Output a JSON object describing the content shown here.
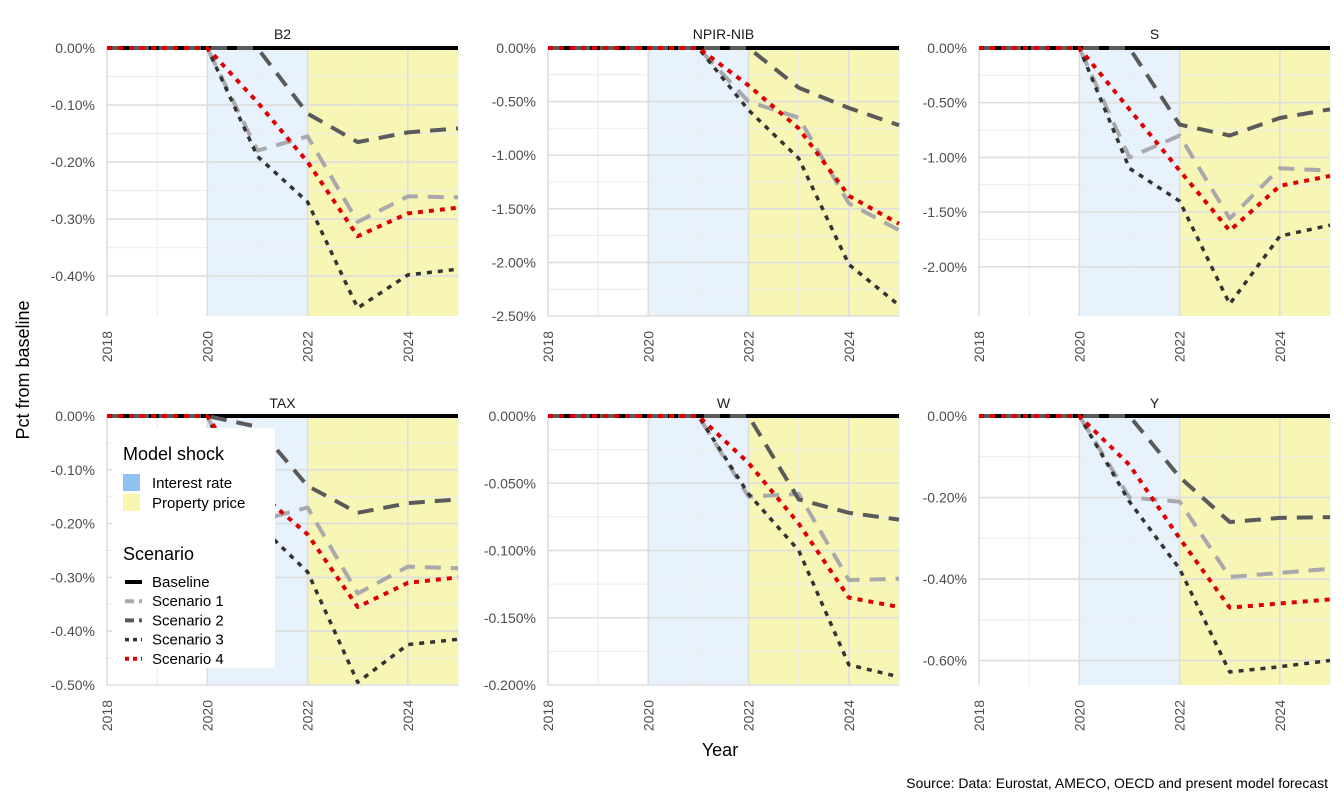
{
  "chart_data": {
    "type": "line",
    "xlabel": "Year",
    "ylabel": "Pct from baseline",
    "caption": "Source: Data: Eurostat, AMECO, OECD and present model forecast",
    "x_ticks": [
      "2018",
      "2020",
      "2022",
      "2024"
    ],
    "x": [
      2018,
      2019,
      2020,
      2021,
      2022,
      2023,
      2024,
      2025
    ],
    "xlim": [
      2018,
      2025
    ],
    "shock_periods": [
      {
        "name": "Interest rate",
        "start": 2020,
        "end": 2022,
        "color": "#90c3f5"
      },
      {
        "name": "Property price",
        "start": 2022,
        "end": 2025,
        "color": "#f6f5a8"
      }
    ],
    "legend": {
      "shock_title": "Model shock",
      "shock_items": [
        {
          "label": "Interest rate",
          "color": "#8fc1f2"
        },
        {
          "label": "Property price",
          "color": "#f8f7b0"
        }
      ],
      "scenario_title": "Scenario",
      "scenario_items": [
        {
          "label": "Baseline",
          "color": "#000000",
          "dash": "solid"
        },
        {
          "label": "Scenario 1",
          "color": "#a9a9ad",
          "dash": "longdash"
        },
        {
          "label": "Scenario 2",
          "color": "#5a5a5a",
          "dash": "longdash"
        },
        {
          "label": "Scenario 3",
          "color": "#333333",
          "dash": "dotted"
        },
        {
          "label": "Scenario 4",
          "color": "#dd0000",
          "dash": "dotted"
        }
      ]
    },
    "panels": [
      {
        "title": "B2",
        "ylim": [
          -0.47,
          0.0
        ],
        "y_ticks": [
          0,
          -0.1,
          -0.2,
          -0.3,
          -0.4
        ],
        "y_tick_labels": [
          "0.00%",
          "-0.10%",
          "-0.20%",
          "-0.30%",
          "-0.40%"
        ],
        "series": [
          {
            "name": "Baseline",
            "values": [
              0,
              0,
              0,
              0,
              0,
              0,
              0,
              0
            ]
          },
          {
            "name": "Scenario 1",
            "values": [
              0,
              0,
              0,
              -0.18,
              -0.155,
              -0.305,
              -0.26,
              -0.262
            ]
          },
          {
            "name": "Scenario 2",
            "values": [
              0,
              0,
              0,
              0,
              -0.115,
              -0.165,
              -0.148,
              -0.141
            ]
          },
          {
            "name": "Scenario 3",
            "values": [
              0,
              0,
              0,
              -0.19,
              -0.27,
              -0.456,
              -0.398,
              -0.388
            ]
          },
          {
            "name": "Scenario 4",
            "values": [
              0,
              0,
              0,
              -0.095,
              -0.2,
              -0.33,
              -0.29,
              -0.28
            ]
          }
        ]
      },
      {
        "title": "NPIR-NIB",
        "ylim": [
          -2.5,
          0.0
        ],
        "y_ticks": [
          0,
          -0.5,
          -1.0,
          -1.5,
          -2.0,
          -2.5
        ],
        "y_tick_labels": [
          "0.00%",
          "-0.50%",
          "-1.00%",
          "-1.50%",
          "-2.00%",
          "-2.50%"
        ],
        "series": [
          {
            "name": "Baseline",
            "values": [
              0,
              0,
              0,
              0,
              0,
              0,
              0,
              0
            ]
          },
          {
            "name": "Scenario 1",
            "values": [
              0,
              0,
              0,
              0,
              -0.5,
              -0.65,
              -1.45,
              -1.7
            ]
          },
          {
            "name": "Scenario 2",
            "values": [
              0,
              0,
              0,
              0,
              0,
              -0.37,
              -0.56,
              -0.72
            ]
          },
          {
            "name": "Scenario 3",
            "values": [
              0,
              0,
              0,
              0,
              -0.58,
              -1.03,
              -2.02,
              -2.4
            ]
          },
          {
            "name": "Scenario 4",
            "values": [
              0,
              0,
              0,
              0,
              -0.35,
              -0.75,
              -1.38,
              -1.64
            ]
          }
        ]
      },
      {
        "title": "S",
        "ylim": [
          -2.45,
          0.0
        ],
        "y_ticks": [
          0,
          -0.5,
          -1.0,
          -1.5,
          -2.0
        ],
        "y_tick_labels": [
          "0.00%",
          "-0.50%",
          "-1.00%",
          "-1.50%",
          "-2.00%"
        ],
        "series": [
          {
            "name": "Baseline",
            "values": [
              0,
              0,
              0,
              0,
              0,
              0,
              0,
              0
            ]
          },
          {
            "name": "Scenario 1",
            "values": [
              0,
              0,
              0,
              -1.0,
              -0.8,
              -1.56,
              -1.1,
              -1.12
            ]
          },
          {
            "name": "Scenario 2",
            "values": [
              0,
              0,
              0,
              0,
              -0.7,
              -0.8,
              -0.64,
              -0.56
            ]
          },
          {
            "name": "Scenario 3",
            "values": [
              0,
              0,
              0,
              -1.1,
              -1.4,
              -2.34,
              -1.72,
              -1.62
            ]
          },
          {
            "name": "Scenario 4",
            "values": [
              0,
              0,
              0,
              -0.56,
              -1.12,
              -1.67,
              -1.26,
              -1.17
            ]
          }
        ]
      },
      {
        "title": "TAX",
        "ylim": [
          -0.5,
          0.0
        ],
        "y_ticks": [
          0,
          -0.1,
          -0.2,
          -0.3,
          -0.4,
          -0.5
        ],
        "y_tick_labels": [
          "0.00%",
          "-0.10%",
          "-0.20%",
          "-0.30%",
          "-0.40%",
          "-0.50%"
        ],
        "series": [
          {
            "name": "Baseline",
            "values": [
              0,
              0,
              0,
              0,
              0,
              0,
              0,
              0
            ]
          },
          {
            "name": "Scenario 1",
            "values": [
              0,
              0,
              0,
              -0.195,
              -0.17,
              -0.33,
              -0.28,
              -0.283
            ]
          },
          {
            "name": "Scenario 2",
            "values": [
              0,
              0,
              0,
              -0.02,
              -0.13,
              -0.18,
              -0.162,
              -0.155
            ]
          },
          {
            "name": "Scenario 3",
            "values": [
              0,
              0,
              0,
              -0.2,
              -0.29,
              -0.495,
              -0.425,
              -0.415
            ]
          },
          {
            "name": "Scenario 4",
            "values": [
              0,
              0,
              0,
              -0.14,
              -0.22,
              -0.355,
              -0.31,
              -0.3
            ]
          }
        ]
      },
      {
        "title": "W",
        "ylim": [
          -0.2,
          0.0
        ],
        "y_ticks": [
          0,
          -0.05,
          -0.1,
          -0.15,
          -0.2
        ],
        "y_tick_labels": [
          "0.000%",
          "-0.050%",
          "-0.100%",
          "-0.150%",
          "-0.200%"
        ],
        "series": [
          {
            "name": "Baseline",
            "values": [
              0,
              0,
              0,
              0,
              0,
              0,
              0,
              0
            ]
          },
          {
            "name": "Scenario 1",
            "values": [
              0,
              0,
              0,
              0,
              -0.06,
              -0.058,
              -0.122,
              -0.121
            ]
          },
          {
            "name": "Scenario 2",
            "values": [
              0,
              0,
              0,
              0,
              0,
              -0.062,
              -0.072,
              -0.077
            ]
          },
          {
            "name": "Scenario 3",
            "values": [
              0,
              0,
              0,
              0,
              -0.058,
              -0.1,
              -0.185,
              -0.194
            ]
          },
          {
            "name": "Scenario 4",
            "values": [
              0,
              0,
              0,
              0,
              -0.035,
              -0.08,
              -0.135,
              -0.142
            ]
          }
        ]
      },
      {
        "title": "Y",
        "ylim": [
          -0.66,
          0.0
        ],
        "y_ticks": [
          0,
          -0.2,
          -0.4,
          -0.6
        ],
        "y_tick_labels": [
          "0.00%",
          "-0.20%",
          "-0.40%",
          "-0.60%"
        ],
        "series": [
          {
            "name": "Baseline",
            "values": [
              0,
              0,
              0,
              0,
              0,
              0,
              0,
              0
            ]
          },
          {
            "name": "Scenario 1",
            "values": [
              0,
              0,
              0,
              -0.2,
              -0.21,
              -0.395,
              -0.385,
              -0.375
            ]
          },
          {
            "name": "Scenario 2",
            "values": [
              0,
              0,
              0,
              0,
              -0.15,
              -0.26,
              -0.25,
              -0.248
            ]
          },
          {
            "name": "Scenario 3",
            "values": [
              0,
              0,
              0,
              -0.21,
              -0.375,
              -0.628,
              -0.615,
              -0.6
            ]
          },
          {
            "name": "Scenario 4",
            "values": [
              0,
              0,
              0,
              -0.12,
              -0.3,
              -0.47,
              -0.46,
              -0.45
            ]
          }
        ]
      }
    ]
  }
}
